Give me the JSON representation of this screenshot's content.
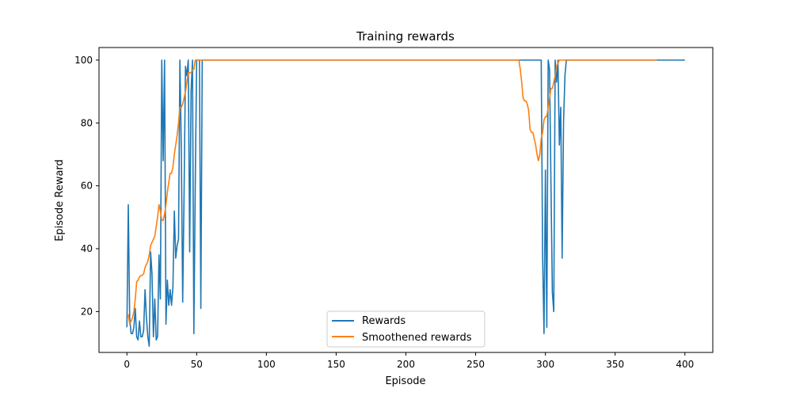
{
  "chart_data": {
    "type": "line",
    "title": "Training rewards",
    "xlabel": "Episode",
    "ylabel": "Episode Reward",
    "xlim": [
      -20,
      420
    ],
    "ylim": [
      7,
      104
    ],
    "xticks": [
      0,
      50,
      100,
      150,
      200,
      250,
      300,
      350,
      400
    ],
    "yticks": [
      20,
      40,
      60,
      80,
      100
    ],
    "grid": false,
    "legend": "lower center",
    "series": [
      {
        "name": "Rewards",
        "color": "#1f77b4",
        "points": [
          [
            0,
            15
          ],
          [
            1,
            54
          ],
          [
            2,
            18
          ],
          [
            3,
            13
          ],
          [
            4,
            13
          ],
          [
            5,
            15
          ],
          [
            6,
            21
          ],
          [
            7,
            12
          ],
          [
            8,
            11
          ],
          [
            9,
            17
          ],
          [
            10,
            12
          ],
          [
            11,
            12
          ],
          [
            12,
            14
          ],
          [
            13,
            27
          ],
          [
            14,
            18
          ],
          [
            15,
            12
          ],
          [
            16,
            9
          ],
          [
            17,
            39
          ],
          [
            18,
            32
          ],
          [
            19,
            12
          ],
          [
            20,
            24
          ],
          [
            21,
            11
          ],
          [
            22,
            12
          ],
          [
            23,
            38
          ],
          [
            24,
            24
          ],
          [
            25,
            100
          ],
          [
            26,
            68
          ],
          [
            27,
            100
          ],
          [
            28,
            16
          ],
          [
            29,
            30
          ],
          [
            30,
            22
          ],
          [
            31,
            27
          ],
          [
            32,
            22
          ],
          [
            33,
            28
          ],
          [
            34,
            52
          ],
          [
            35,
            37
          ],
          [
            36,
            41
          ],
          [
            37,
            43
          ],
          [
            38,
            100
          ],
          [
            39,
            72
          ],
          [
            40,
            23
          ],
          [
            41,
            58
          ],
          [
            42,
            98
          ],
          [
            43,
            95
          ],
          [
            44,
            100
          ],
          [
            45,
            39
          ],
          [
            46,
            90
          ],
          [
            47,
            100
          ],
          [
            48,
            13
          ],
          [
            49,
            60
          ],
          [
            50,
            100
          ],
          [
            51,
            100
          ],
          [
            52,
            100
          ],
          [
            53,
            21
          ],
          [
            54,
            100
          ],
          [
            55,
            100
          ],
          [
            100,
            100
          ],
          [
            200,
            100
          ],
          [
            297,
            100
          ],
          [
            298,
            38
          ],
          [
            299,
            13
          ],
          [
            300,
            65
          ],
          [
            301,
            15
          ],
          [
            302,
            100
          ],
          [
            303,
            97
          ],
          [
            304,
            60
          ],
          [
            305,
            26
          ],
          [
            306,
            20
          ],
          [
            307,
            100
          ],
          [
            308,
            93
          ],
          [
            309,
            100
          ],
          [
            310,
            73
          ],
          [
            311,
            85
          ],
          [
            312,
            37
          ],
          [
            313,
            80
          ],
          [
            314,
            95
          ],
          [
            315,
            100
          ],
          [
            316,
            100
          ],
          [
            400,
            100
          ]
        ]
      },
      {
        "name": "Smoothened rewards",
        "color": "#ff7f0e",
        "points": [
          [
            0,
            19
          ],
          [
            1,
            19
          ],
          [
            2,
            16
          ],
          [
            3,
            17
          ],
          [
            4,
            18
          ],
          [
            5,
            20
          ],
          [
            6,
            24
          ],
          [
            7,
            29.5
          ],
          [
            8,
            30
          ],
          [
            9,
            31
          ],
          [
            10,
            31.5
          ],
          [
            11,
            31.5
          ],
          [
            12,
            32
          ],
          [
            13,
            34
          ],
          [
            14,
            35
          ],
          [
            15,
            36
          ],
          [
            16,
            38
          ],
          [
            17,
            41
          ],
          [
            18,
            42
          ],
          [
            19,
            43
          ],
          [
            20,
            44
          ],
          [
            21,
            47
          ],
          [
            22,
            50
          ],
          [
            23,
            54
          ],
          [
            24,
            52
          ],
          [
            25,
            49
          ],
          [
            26,
            49
          ],
          [
            27,
            51
          ],
          [
            28,
            54
          ],
          [
            29,
            58
          ],
          [
            30,
            61
          ],
          [
            31,
            64
          ],
          [
            32,
            64
          ],
          [
            33,
            66
          ],
          [
            34,
            70
          ],
          [
            35,
            73
          ],
          [
            36,
            76
          ],
          [
            37,
            80
          ],
          [
            38,
            85
          ],
          [
            39,
            85
          ],
          [
            40,
            86
          ],
          [
            41,
            88
          ],
          [
            42,
            90
          ],
          [
            43,
            93
          ],
          [
            44,
            96
          ],
          [
            45,
            96
          ],
          [
            46,
            96
          ],
          [
            47,
            97
          ],
          [
            48,
            97
          ],
          [
            49,
            100
          ],
          [
            50,
            100
          ],
          [
            100,
            100
          ],
          [
            200,
            100
          ],
          [
            281,
            100
          ],
          [
            282,
            97
          ],
          [
            283,
            93
          ],
          [
            284,
            88
          ],
          [
            285,
            87
          ],
          [
            286,
            87
          ],
          [
            287,
            86
          ],
          [
            288,
            84
          ],
          [
            289,
            78
          ],
          [
            290,
            77
          ],
          [
            291,
            77
          ],
          [
            292,
            75
          ],
          [
            293,
            73
          ],
          [
            294,
            70
          ],
          [
            295,
            68
          ],
          [
            296,
            70
          ],
          [
            297,
            75
          ],
          [
            298,
            77
          ],
          [
            299,
            81
          ],
          [
            300,
            82
          ],
          [
            301,
            82
          ],
          [
            302,
            85
          ],
          [
            303,
            88
          ],
          [
            304,
            91
          ],
          [
            305,
            91
          ],
          [
            306,
            93
          ],
          [
            307,
            95
          ],
          [
            308,
            98
          ],
          [
            309,
            99
          ],
          [
            310,
            100
          ],
          [
            380,
            100
          ]
        ]
      }
    ]
  }
}
